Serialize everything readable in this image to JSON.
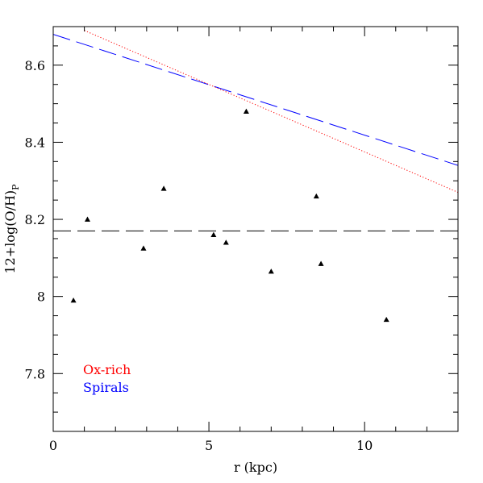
{
  "chart_data": {
    "type": "scatter",
    "xlabel": "r (kpc)",
    "ylabel": "12+log(O/H)",
    "ylabel_subscript": "P",
    "xlim": [
      0,
      13
    ],
    "ylim": [
      7.65,
      8.7
    ],
    "x_major_ticks": [
      0,
      5,
      10
    ],
    "x_minor_step": 1,
    "y_major_ticks": [
      7.8,
      8.0,
      8.2,
      8.4,
      8.6
    ],
    "y_minor_step": 0.05,
    "x_tick_labels": [
      "0",
      "5",
      "10"
    ],
    "y_tick_labels": [
      "7.8",
      "8",
      "8.2",
      "8.4",
      "8.6"
    ],
    "grid": false,
    "points": [
      {
        "x": 0.65,
        "y": 7.99
      },
      {
        "x": 1.1,
        "y": 8.2
      },
      {
        "x": 2.9,
        "y": 8.125
      },
      {
        "x": 3.55,
        "y": 8.28
      },
      {
        "x": 5.15,
        "y": 8.16
      },
      {
        "x": 5.55,
        "y": 8.14
      },
      {
        "x": 6.2,
        "y": 8.48
      },
      {
        "x": 7.0,
        "y": 8.065
      },
      {
        "x": 8.45,
        "y": 8.26
      },
      {
        "x": 8.6,
        "y": 8.085
      },
      {
        "x": 10.7,
        "y": 7.94
      }
    ],
    "lines": [
      {
        "style": "long-dash",
        "color": "#000000",
        "x": [
          0,
          13
        ],
        "y": [
          8.17,
          8.17
        ]
      },
      {
        "style": "long-dash",
        "color": "#0000ff",
        "x": [
          0,
          13
        ],
        "y": [
          8.68,
          8.34
        ]
      },
      {
        "style": "dotted",
        "color": "#ff0000",
        "x": [
          1.0,
          13
        ],
        "y": [
          8.69,
          8.27
        ]
      }
    ],
    "legend": {
      "placement": "lower-left",
      "entries": [
        {
          "label": "Ox-rich",
          "color": "#ff0000"
        },
        {
          "label": "Spirals",
          "color": "#0000ff"
        }
      ]
    }
  }
}
